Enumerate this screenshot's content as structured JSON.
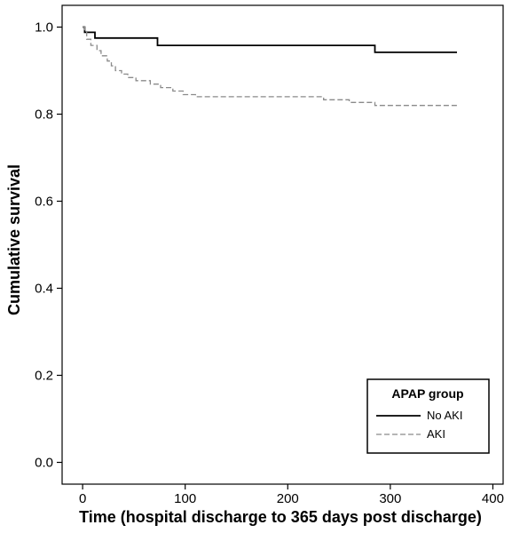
{
  "chart_data": {
    "type": "line",
    "subtype": "kaplan-meier step",
    "xlabel": "Time (hospital discharge to 365 days post discharge)",
    "ylabel": "Cumulative survival",
    "xlim": [
      -20,
      410
    ],
    "ylim": [
      -0.05,
      1.05
    ],
    "xticks": [
      0,
      100,
      200,
      300,
      400
    ],
    "yticks": [
      0.0,
      0.2,
      0.4,
      0.6,
      0.8,
      1.0
    ],
    "xtick_labels": [
      "0",
      "100",
      "200",
      "300",
      "400"
    ],
    "ytick_labels": [
      "0.0",
      "0.2",
      "0.4",
      "0.6",
      "0.8",
      "1.0"
    ],
    "grid": false,
    "legend": {
      "title": "APAP group",
      "position": "bottom-right"
    },
    "series": [
      {
        "name": "No AKI",
        "color": "#000000",
        "line_style": "solid",
        "x": [
          0,
          2,
          12,
          73,
          285,
          365
        ],
        "y": [
          1.0,
          0.988,
          0.975,
          0.958,
          0.942,
          0.942
        ]
      },
      {
        "name": "AKI",
        "color": "#8a8a8a",
        "line_style": "dashed",
        "x": [
          0,
          2,
          4,
          8,
          14,
          18,
          24,
          28,
          32,
          38,
          44,
          52,
          66,
          76,
          88,
          98,
          110,
          235,
          260,
          285,
          365
        ],
        "y": [
          1.0,
          0.99,
          0.972,
          0.958,
          0.946,
          0.934,
          0.922,
          0.911,
          0.9,
          0.892,
          0.884,
          0.877,
          0.869,
          0.861,
          0.853,
          0.845,
          0.84,
          0.833,
          0.827,
          0.82,
          0.82
        ]
      }
    ]
  }
}
